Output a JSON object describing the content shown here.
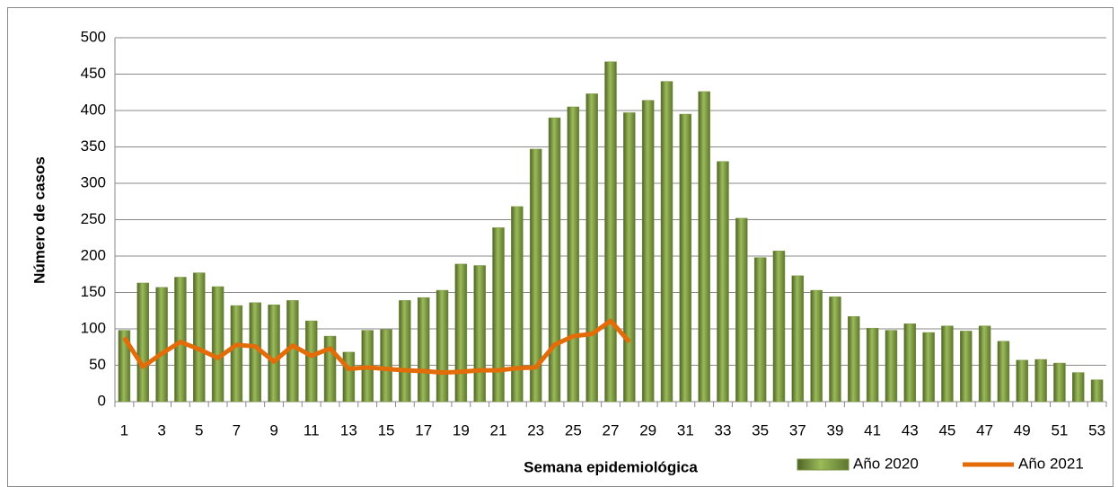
{
  "chart_data": {
    "type": "bar-line",
    "x_label": "Semana epidemiológica",
    "y_label": "Número de casos",
    "categories": [
      1,
      null,
      3,
      null,
      5,
      null,
      7,
      null,
      9,
      null,
      11,
      null,
      13,
      null,
      15,
      null,
      17,
      null,
      19,
      null,
      21,
      null,
      23,
      null,
      25,
      null,
      27,
      null,
      29,
      null,
      31,
      null,
      33,
      null,
      35,
      null,
      37,
      null,
      39,
      null,
      41,
      null,
      43,
      null,
      45,
      null,
      47,
      null,
      49,
      null,
      51,
      null,
      53
    ],
    "series": [
      {
        "name": "Año 2020",
        "type": "bar",
        "color": "#77933c",
        "values": [
          98,
          163,
          157,
          171,
          177,
          158,
          132,
          136,
          133,
          139,
          111,
          90,
          68,
          98,
          99,
          139,
          143,
          153,
          189,
          187,
          239,
          268,
          347,
          390,
          405,
          423,
          467,
          397,
          414,
          440,
          395,
          426,
          330,
          252,
          198,
          207,
          173,
          153,
          144,
          117,
          101,
          98,
          107,
          95,
          104,
          97,
          104,
          83,
          57,
          58,
          53,
          40,
          30
        ]
      },
      {
        "name": "Año 2021",
        "type": "line",
        "color": "#e36c09",
        "values": [
          88,
          48,
          66,
          82,
          72,
          60,
          78,
          76,
          55,
          77,
          63,
          73,
          45,
          47,
          45,
          43,
          42,
          40,
          41,
          43,
          43,
          46,
          47,
          78,
          90,
          93,
          111,
          82,
          null,
          null,
          null,
          null,
          null,
          null,
          null,
          null,
          null,
          null,
          null,
          null,
          null,
          null,
          null,
          null,
          null,
          null,
          null,
          null,
          null,
          null,
          null,
          null,
          null
        ]
      }
    ],
    "ylim": [
      0,
      500
    ],
    "yticks": [
      0,
      50,
      100,
      150,
      200,
      250,
      300,
      350,
      400,
      450,
      500
    ],
    "grid": true,
    "legend": "bottom-right"
  }
}
